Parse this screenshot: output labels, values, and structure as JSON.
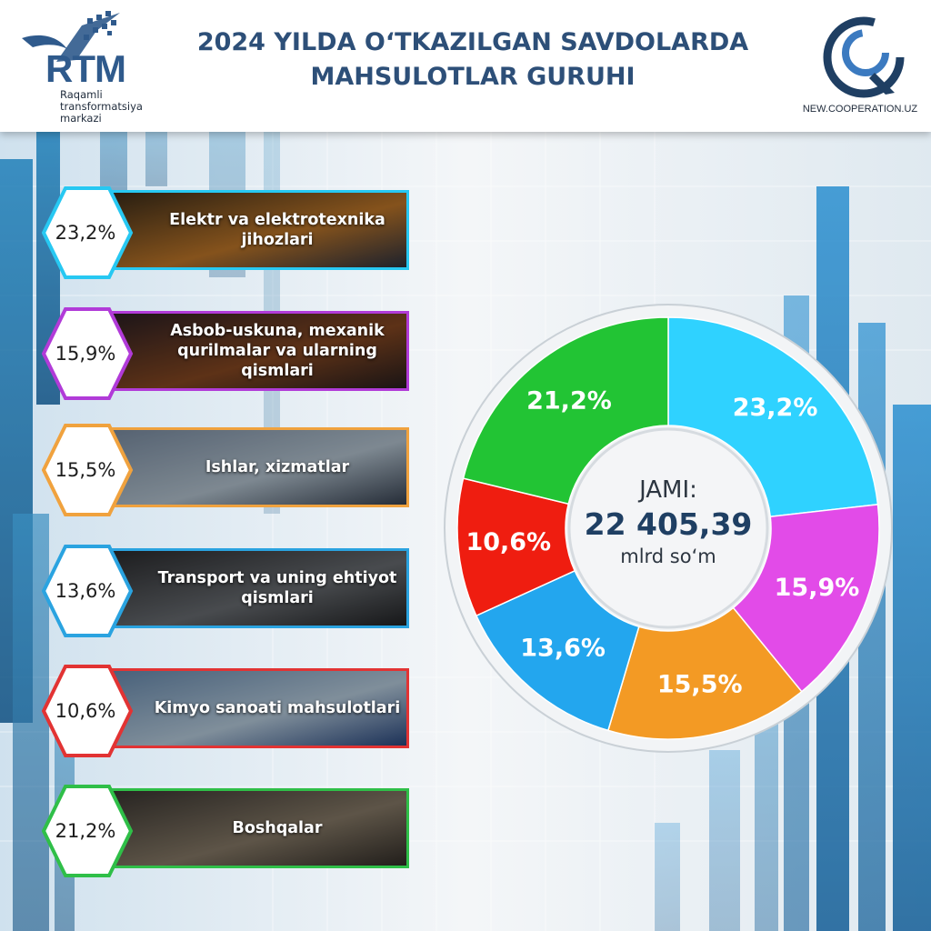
{
  "header": {
    "title_line1": "2024 YILDA O‘TKAZILGAN SAVDOLARDA",
    "title_line2": "MAHSULOTLAR GURUHI",
    "logo_left": {
      "brand": "RTM",
      "sub_line1": "Raqamli",
      "sub_line2": "transformatsiya",
      "sub_line3": "markazi"
    },
    "logo_right": {
      "caption": "NEW.COOPERATION.UZ"
    }
  },
  "categories": [
    {
      "pct": "23,2%",
      "label": "Elektr va elektrotexnika jihozlari",
      "color": "#27c8f2"
    },
    {
      "pct": "15,9%",
      "label": "Asbob-uskuna, mexanik qurilmalar va ularning qismlari",
      "color": "#b13bd8"
    },
    {
      "pct": "15,5%",
      "label": "Ishlar, xizmatlar",
      "color": "#f0a23e"
    },
    {
      "pct": "13,6%",
      "label": "Transport va uning ehtiyot qismlari",
      "color": "#2aa3e0"
    },
    {
      "pct": "10,6%",
      "label": "Kimyo sanoati mahsulotlari",
      "color": "#e23333"
    },
    {
      "pct": "21,2%",
      "label": "Boshqalar",
      "color": "#2fbf48"
    }
  ],
  "chart_data": {
    "type": "pie",
    "donut": true,
    "slices": [
      {
        "label": "23,2%",
        "value": 23.2,
        "color": "#2fd2ff"
      },
      {
        "label": "15,9%",
        "value": 15.9,
        "color": "#e24be8"
      },
      {
        "label": "15,5%",
        "value": 15.5,
        "color": "#f39a24"
      },
      {
        "label": "13,6%",
        "value": 13.6,
        "color": "#23a6ee"
      },
      {
        "label": "10,6%",
        "value": 10.6,
        "color": "#ef1d10"
      },
      {
        "label": "21,2%",
        "value": 21.2,
        "color": "#22c434"
      }
    ],
    "center": {
      "line1": "JAMI:",
      "line2": "22 405,39",
      "line3": "mlrd so‘m"
    }
  }
}
